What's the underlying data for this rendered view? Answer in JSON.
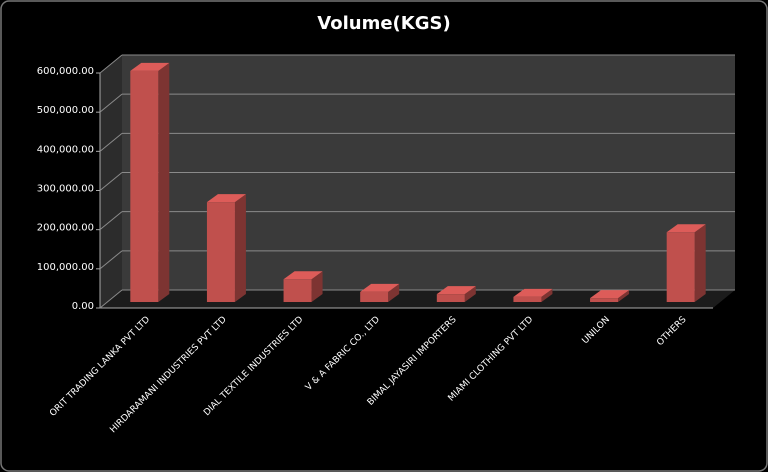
{
  "chart_data": {
    "type": "bar3d",
    "title": "Volume(KGS)",
    "categories": [
      "ORIT TRADING LANKA PVT LTD",
      "HIRDARAMANI INDUSTRIES  PVT LTD",
      "DIAL TEXTILE INDUSTRIES  LTD",
      "V & A FABRIC CO., LTD",
      "BIMAL JAYASIRI  IMPORTERS",
      "MIAMI CLOTHING PVT LTD",
      "UNILON",
      "OTHERS"
    ],
    "values": [
      590000,
      255000,
      58000,
      26000,
      20000,
      13000,
      10000,
      178000
    ],
    "color": "#c0504d",
    "ylim": [
      0,
      600000
    ],
    "yticks": [
      {
        "value": 0,
        "label": "0.00"
      },
      {
        "value": 100000,
        "label": "100,000.00"
      },
      {
        "value": 200000,
        "label": "200,000.00"
      },
      {
        "value": 300000,
        "label": "300,000.00"
      },
      {
        "value": 400000,
        "label": "400,000.00"
      },
      {
        "value": 500000,
        "label": "500,000.00"
      },
      {
        "value": 600000,
        "label": "600,000.00"
      }
    ],
    "grid": true
  }
}
